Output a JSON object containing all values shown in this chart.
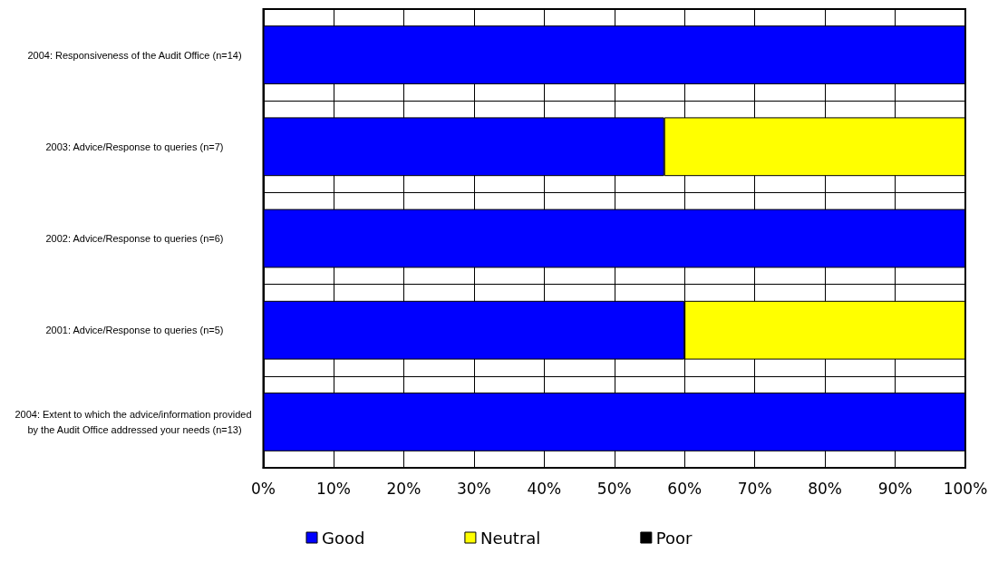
{
  "chart_data": {
    "type": "bar",
    "orientation": "horizontal",
    "stacked": true,
    "categories": [
      "2004: Responsiveness of the Audit Office (n=14)",
      "2003: Advice/Response to queries (n=7)",
      "2002: Advice/Response to queries (n=6)",
      "2001: Advice/Response to queries (n=5)",
      "2004: Extent to which the advice/information provided by the Audit Office addressed your needs (n=13)"
    ],
    "series": [
      {
        "name": "Good",
        "color": "#0000ff",
        "values": [
          100,
          57.1,
          100,
          60,
          100
        ]
      },
      {
        "name": "Neutral",
        "color": "#ffff00",
        "values": [
          0,
          42.9,
          0,
          40,
          0
        ]
      },
      {
        "name": "Poor",
        "color": "#000000",
        "values": [
          0,
          0,
          0,
          0,
          0
        ]
      }
    ],
    "xlim": [
      0,
      100
    ],
    "xticks": [
      {
        "value": 0,
        "label": "0%"
      },
      {
        "value": 10,
        "label": "10%"
      },
      {
        "value": 20,
        "label": "20%"
      },
      {
        "value": 30,
        "label": "30%"
      },
      {
        "value": 40,
        "label": "40%"
      },
      {
        "value": 50,
        "label": "50%"
      },
      {
        "value": 60,
        "label": "60%"
      },
      {
        "value": 70,
        "label": "70%"
      },
      {
        "value": 80,
        "label": "80%"
      },
      {
        "value": 90,
        "label": "90%"
      },
      {
        "value": 100,
        "label": "100%"
      }
    ],
    "grid": true,
    "legend": "bottom"
  }
}
